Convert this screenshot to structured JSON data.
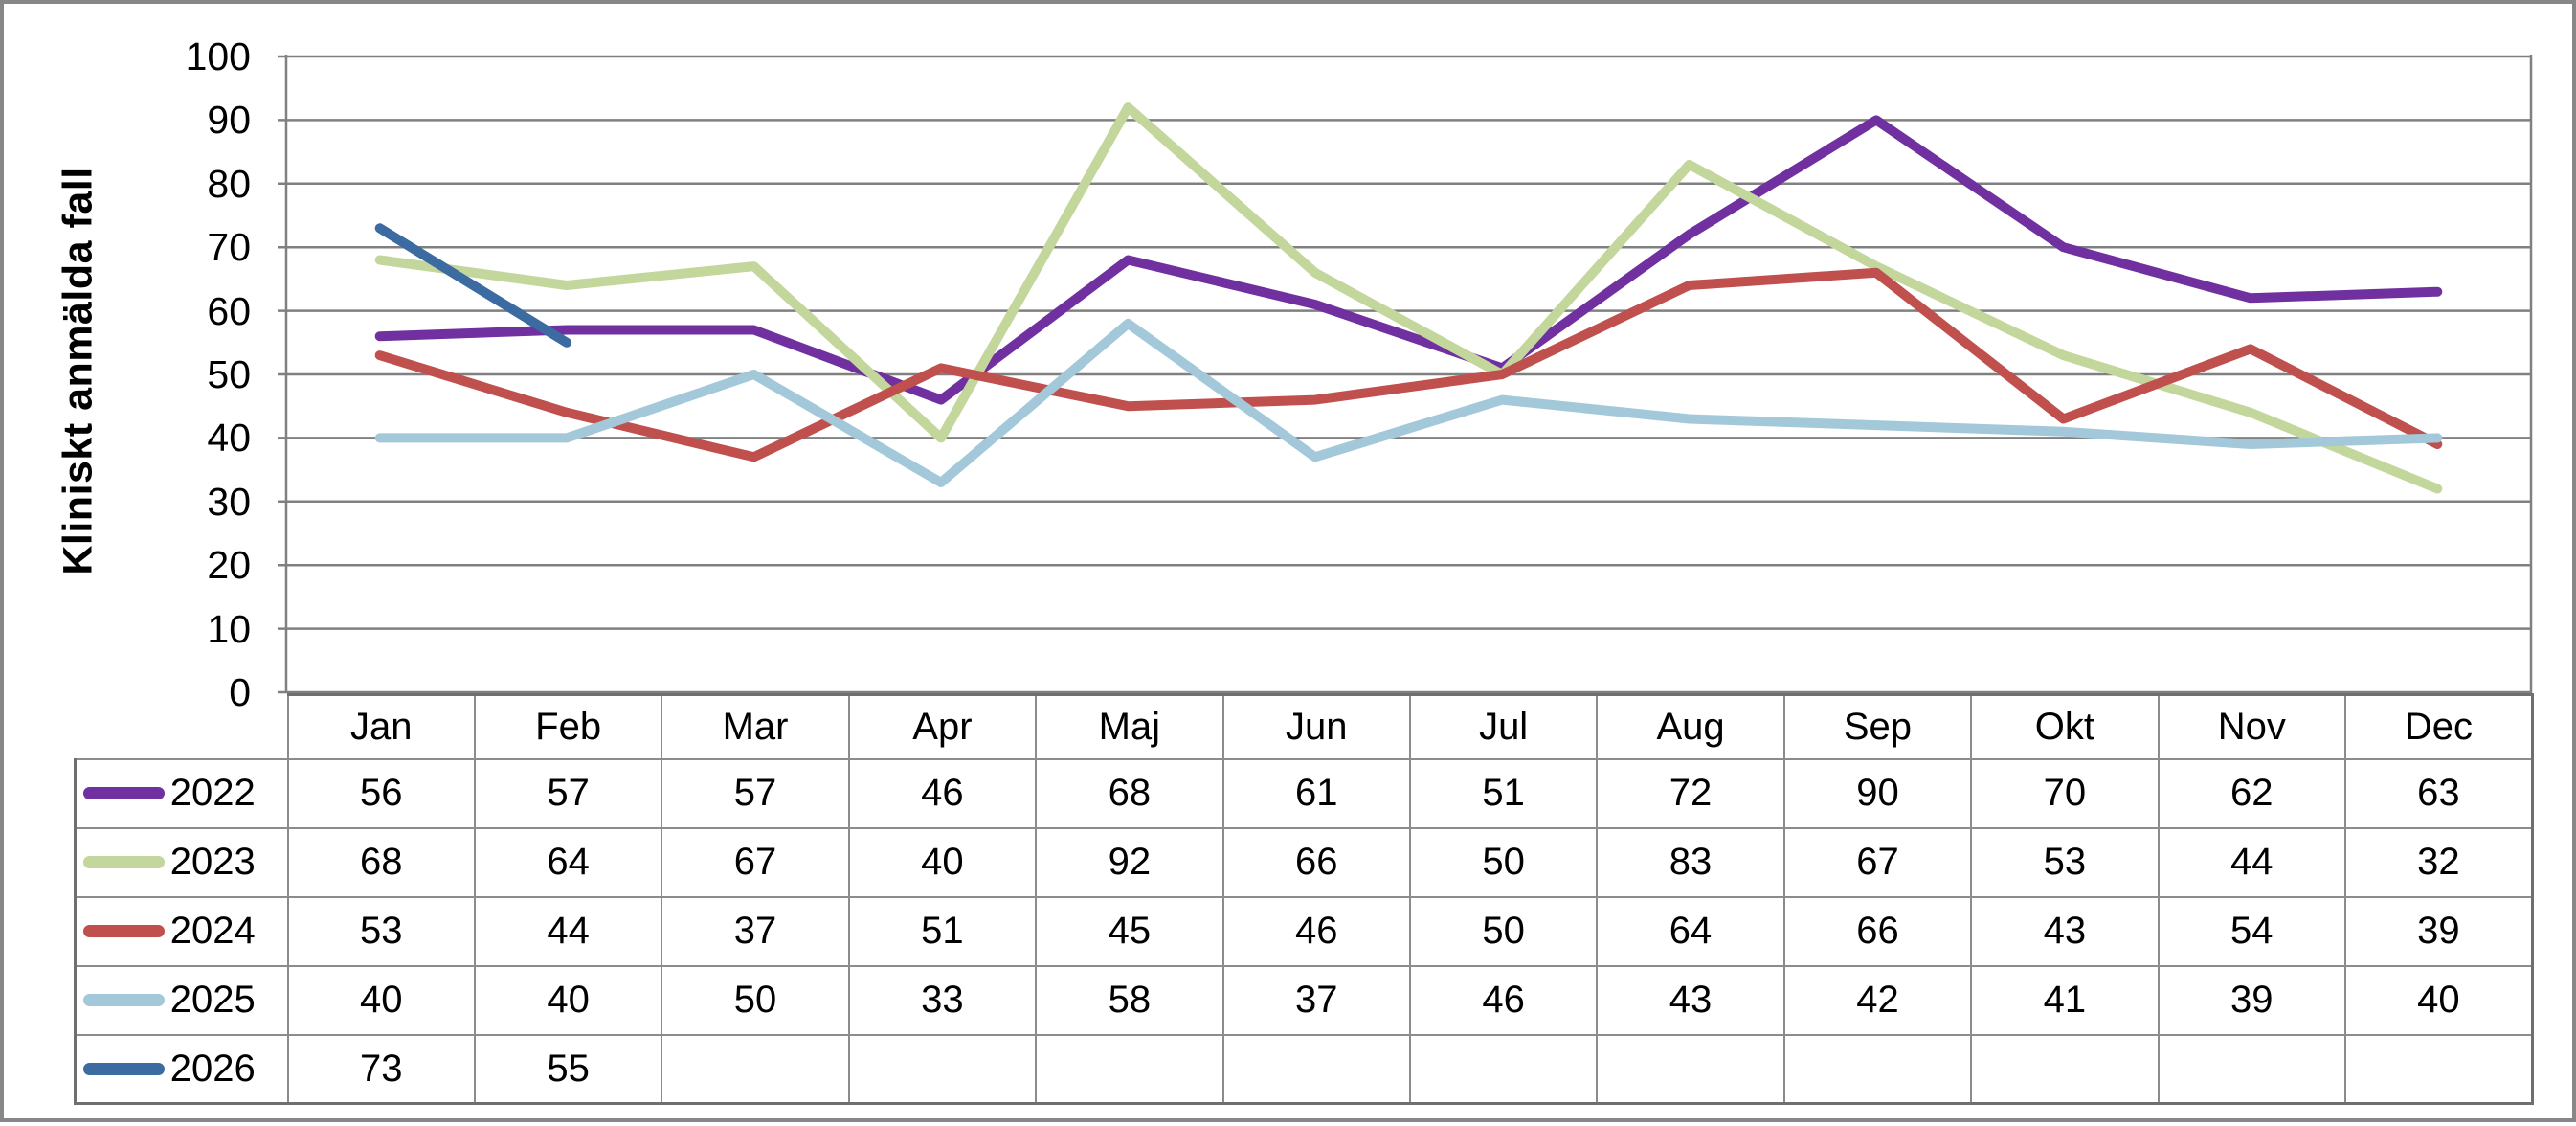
{
  "chart_data": {
    "type": "line",
    "title": "",
    "xlabel": "",
    "ylabel": "Kliniskt anmälda fall",
    "ylim": [
      0,
      100
    ],
    "ytick_labels": [
      "100",
      "90",
      "80",
      "70",
      "60",
      "50",
      "40",
      "30",
      "20",
      "10",
      "0"
    ],
    "grid": true,
    "legend_position": "table-left",
    "categories": [
      "Jan",
      "Feb",
      "Mar",
      "Apr",
      "Maj",
      "Jun",
      "Jul",
      "Aug",
      "Sep",
      "Okt",
      "Nov",
      "Dec"
    ],
    "series": [
      {
        "name": "2022",
        "color": "#7030A0",
        "values": [
          56,
          57,
          57,
          46,
          68,
          61,
          51,
          72,
          90,
          70,
          62,
          63
        ]
      },
      {
        "name": "2023",
        "color": "#C3D69B",
        "values": [
          68,
          64,
          67,
          40,
          92,
          66,
          50,
          83,
          67,
          53,
          44,
          32
        ]
      },
      {
        "name": "2024",
        "color": "#C0504D",
        "values": [
          53,
          44,
          37,
          51,
          45,
          46,
          50,
          64,
          66,
          43,
          54,
          39
        ]
      },
      {
        "name": "2025",
        "color": "#A2C8D9",
        "values": [
          40,
          40,
          50,
          33,
          58,
          37,
          46,
          43,
          42,
          41,
          39,
          40
        ]
      },
      {
        "name": "2026",
        "color": "#3B6BA1",
        "values": [
          73,
          55
        ]
      }
    ]
  },
  "colors": {
    "gridline": "#808080",
    "table_border_inner": "#8C8C8C",
    "table_border_outer": "#6F6F6F",
    "frame_border": "#878787",
    "text": "#000000"
  }
}
